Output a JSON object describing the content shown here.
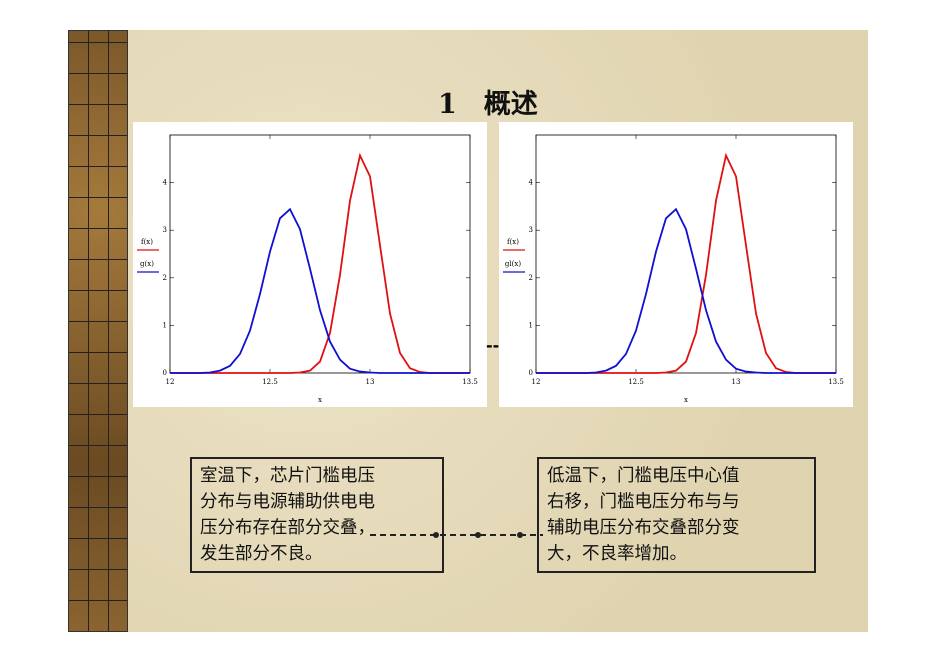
{
  "slide": {
    "title": "1　概述",
    "separator": "--",
    "notes": [
      {
        "lines": [
          "室温下，芯片门槛电压",
          "分布与电源辅助供电电",
          "压分布存在部分交叠，",
          "发生部分不良。"
        ]
      },
      {
        "lines": [
          "低温下，门槛电压中心值",
          "右移，门槛电压分布与与",
          "辅助电压分布交叠部分变",
          "大，不良率增加。"
        ]
      }
    ]
  },
  "chart_data": [
    {
      "type": "line",
      "x_label": "x",
      "x": [
        12,
        12.05,
        12.1,
        12.15,
        12.2,
        12.25,
        12.3,
        12.35,
        12.4,
        12.45,
        12.5,
        12.55,
        12.6,
        12.65,
        12.7,
        12.75,
        12.8,
        12.85,
        12.9,
        12.95,
        13,
        13.05,
        13.1,
        13.15,
        13.2,
        13.25,
        13.3,
        13.35,
        13.4,
        13.45,
        13.5
      ],
      "series": [
        {
          "name": "f(x)",
          "color": "#e01010",
          "values": [
            0,
            0,
            0,
            0,
            0,
            0,
            0,
            0,
            0,
            0,
            0,
            0,
            0,
            0.01,
            0.05,
            0.24,
            0.84,
            2.06,
            3.62,
            4.57,
            4.13,
            2.68,
            1.25,
            0.42,
            0.1,
            0.02,
            0,
            0,
            0,
            0,
            0
          ]
        },
        {
          "name": "g(x)",
          "color": "#1010d0",
          "values": [
            0,
            0,
            0,
            0,
            0.01,
            0.05,
            0.15,
            0.4,
            0.89,
            1.66,
            2.55,
            3.25,
            3.44,
            3.02,
            2.19,
            1.32,
            0.66,
            0.28,
            0.09,
            0.03,
            0.01,
            0,
            0,
            0,
            0,
            0,
            0,
            0,
            0,
            0,
            0
          ]
        }
      ],
      "xlim": [
        12,
        13.5
      ],
      "xticks": [
        12,
        12.5,
        13,
        13.5
      ],
      "ylim": [
        0,
        5
      ],
      "yticks": [
        0,
        1,
        2,
        3,
        4
      ]
    },
    {
      "type": "line",
      "x_label": "x",
      "x": [
        12,
        12.05,
        12.1,
        12.15,
        12.2,
        12.25,
        12.3,
        12.35,
        12.4,
        12.45,
        12.5,
        12.55,
        12.6,
        12.65,
        12.7,
        12.75,
        12.8,
        12.85,
        12.9,
        12.95,
        13,
        13.05,
        13.1,
        13.15,
        13.2,
        13.25,
        13.3,
        13.35,
        13.4,
        13.45,
        13.5
      ],
      "series": [
        {
          "name": "f(x)",
          "color": "#e01010",
          "values": [
            0,
            0,
            0,
            0,
            0,
            0,
            0,
            0,
            0,
            0,
            0,
            0,
            0,
            0.01,
            0.05,
            0.24,
            0.84,
            2.06,
            3.62,
            4.57,
            4.13,
            2.68,
            1.25,
            0.42,
            0.1,
            0.02,
            0,
            0,
            0,
            0,
            0
          ]
        },
        {
          "name": "gl(x)",
          "color": "#1010d0",
          "values": [
            0,
            0,
            0,
            0,
            0,
            0,
            0.01,
            0.05,
            0.15,
            0.4,
            0.89,
            1.66,
            2.55,
            3.25,
            3.44,
            3.02,
            2.19,
            1.32,
            0.66,
            0.28,
            0.09,
            0.03,
            0.01,
            0,
            0,
            0,
            0,
            0,
            0,
            0,
            0
          ]
        }
      ],
      "xlim": [
        12,
        13.5
      ],
      "xticks": [
        12,
        12.5,
        13,
        13.5
      ],
      "ylim": [
        0,
        5
      ],
      "yticks": [
        0,
        1,
        2,
        3,
        4
      ]
    }
  ]
}
